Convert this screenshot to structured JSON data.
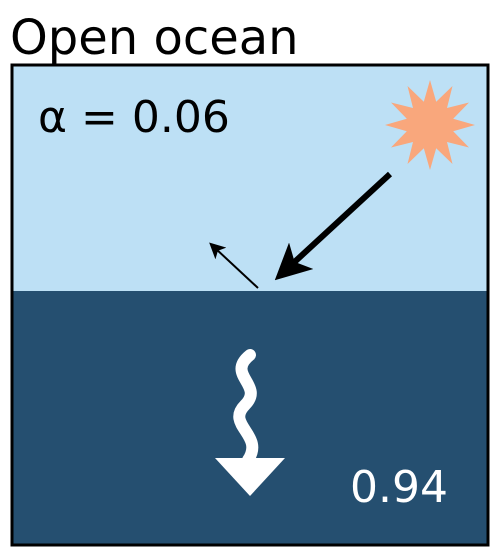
{
  "title": "Open ocean",
  "albedo_label": "α = 0.06",
  "absorbed_label": "0.94"
}
